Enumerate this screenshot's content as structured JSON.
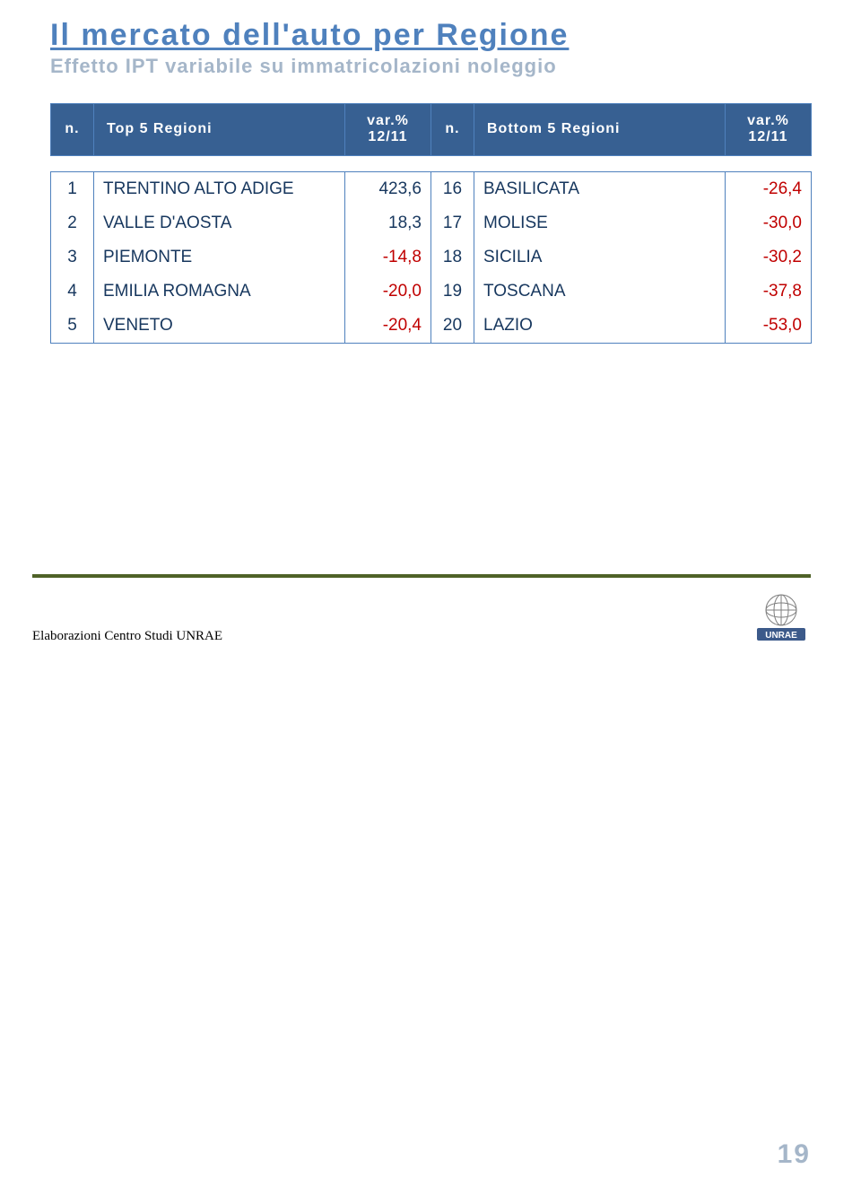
{
  "title": "Il mercato dell'auto per Regione",
  "subtitle": "Effetto IPT variabile su immatricolazioni noleggio",
  "colors": {
    "accent": "#4f81bd",
    "subtitle": "#a5b6c9",
    "header_bg": "#376092",
    "header_fg": "#ffffff",
    "text": "#17375e",
    "negative": "#c00000",
    "rule": "#4f6228"
  },
  "header": {
    "n": "n.",
    "top": "Top 5 Regioni",
    "var1": "var.%",
    "var2": "12/11",
    "bottom": "Bottom 5 Regioni"
  },
  "rows": [
    {
      "i": "1",
      "top_name": "TRENTINO ALTO ADIGE",
      "top_val": "423,6",
      "top_neg": false,
      "bi": "16",
      "bot_name": "BASILICATA",
      "bot_val": "-26,4",
      "bot_neg": true
    },
    {
      "i": "2",
      "top_name": "VALLE D'AOSTA",
      "top_val": "18,3",
      "top_neg": false,
      "bi": "17",
      "bot_name": "MOLISE",
      "bot_val": "-30,0",
      "bot_neg": true
    },
    {
      "i": "3",
      "top_name": "PIEMONTE",
      "top_val": "-14,8",
      "top_neg": true,
      "bi": "18",
      "bot_name": "SICILIA",
      "bot_val": "-30,2",
      "bot_neg": true
    },
    {
      "i": "4",
      "top_name": "EMILIA ROMAGNA",
      "top_val": "-20,0",
      "top_neg": true,
      "bi": "19",
      "bot_name": "TOSCANA",
      "bot_val": "-37,8",
      "bot_neg": true
    },
    {
      "i": "5",
      "top_name": "VENETO",
      "top_val": "-20,4",
      "top_neg": true,
      "bi": "20",
      "bot_name": "LAZIO",
      "bot_val": "-53,0",
      "bot_neg": true
    }
  ],
  "credit": "Elaborazioni Centro Studi UNRAE",
  "logo_label": "UNRAE",
  "page_number": "19"
}
